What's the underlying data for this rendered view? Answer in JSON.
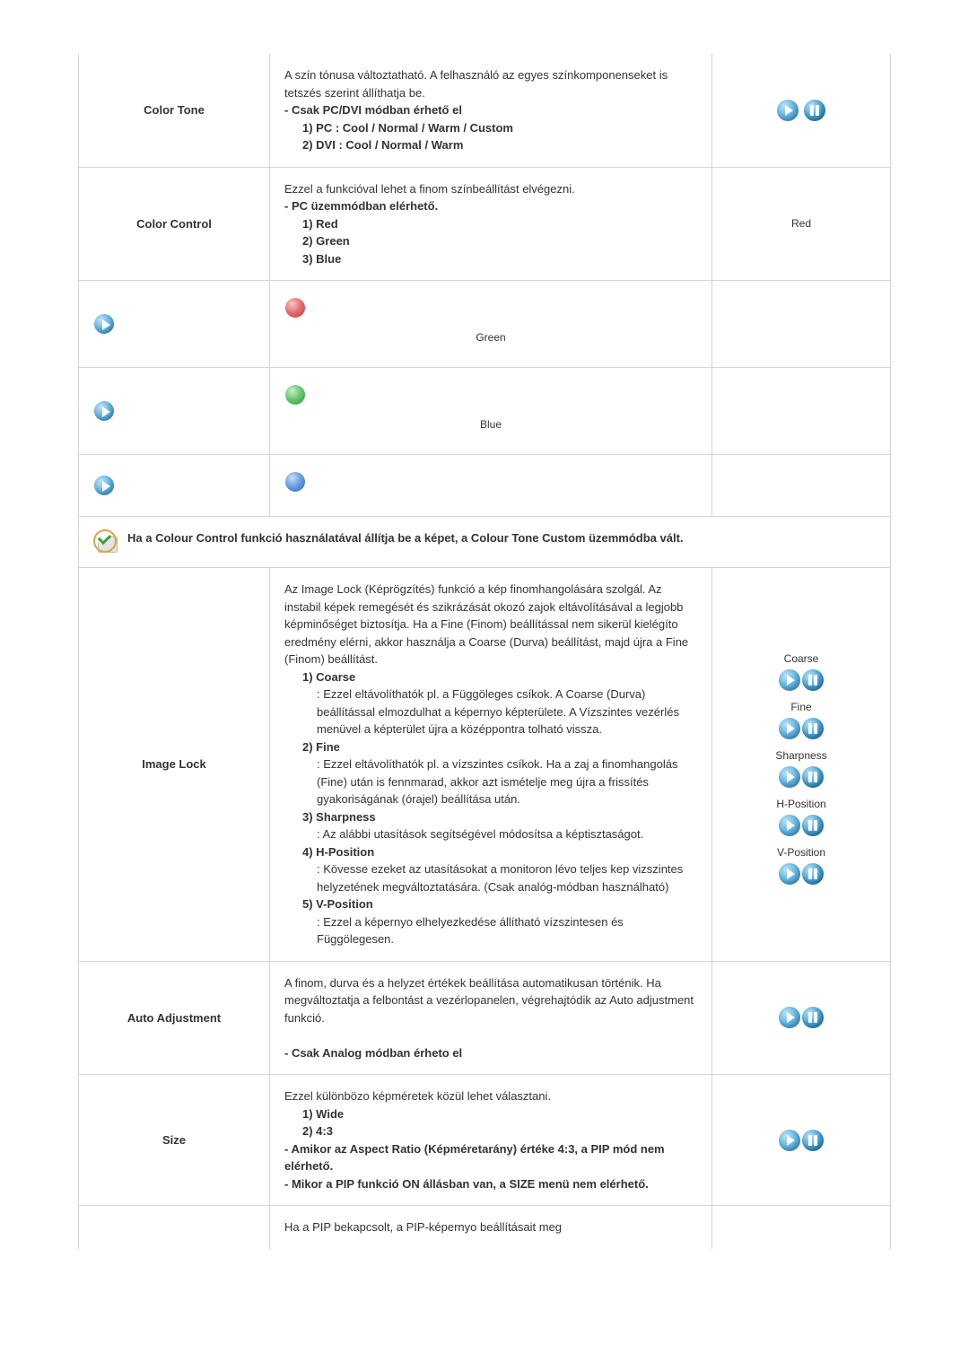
{
  "rows": {
    "color_tone": {
      "label": "Color Tone",
      "desc_intro": "A szín tónusa változtatható. A felhasználó az egyes színkomponenseket is tetszés szerint állíthatja be.",
      "desc_bold": "- Csak PC/DVI módban érhető el",
      "opt1": "1) PC : Cool / Normal / Warm / Custom",
      "opt2": "2) DVI : Cool / Normal / Warm"
    },
    "color_control": {
      "label": "Color Control",
      "desc_intro": "Ezzel a funkcióval lehet a finom színbeállítást elvégezni.",
      "desc_bold": "- PC üzemmódban elérhető.",
      "opt1": "1) Red",
      "opt2": "2) Green",
      "opt3": "3) Blue",
      "right_label": "Red",
      "slider_labels": {
        "green": "Green",
        "blue": "Blue"
      }
    },
    "note": {
      "text": "Ha a Colour Control funkció használatával állítja be a képet, a Colour Tone Custom üzemmódba vált."
    },
    "image_lock": {
      "label": "Image Lock",
      "intro": "Az Image Lock (Képrögzítés) funkció a kép finomhangolására szolgál. Az instabil képek remegését és szikrázását okozó zajok eltávolításával a legjobb képminőséget biztosítja. Ha a Fine (Finom) beállítással nem sikerül kielégíto eredmény elérni, akkor használja a Coarse (Durva) beállítást, majd újra a Fine (Finom) beállítást.",
      "h1": "1) Coarse",
      "d1": ": Ezzel eltávolíthatók pl. a Függöleges csíkok. A Coarse (Durva) beállítással elmozdulhat a képernyo képterülete. A Vízszintes vezérlés menüvel a képterület újra a középpontra tolható vissza.",
      "h2": "2) Fine",
      "d2": ": Ezzel eltávolíthatók pl. a vízszintes csíkok. Ha a zaj a finomhangolás (Fine) után is fennmarad, akkor azt ismételje meg újra a frissítés gyakoriságának (órajel) beállítása után.",
      "h3": "3) Sharpness",
      "d3": ": Az alábbi utasítások segítségével módosítsa a képtisztaságot.",
      "h4": "4) H-Position",
      "d4": ": Kövesse ezeket az utasításokat a monitoron lévo teljes kep vizszintes helyzetének megváltoztatására. (Csak analóg-módban használható)",
      "h5": "5) V-Position",
      "d5": ": Ezzel a képernyo elhelyezkedése állítható vízszintesen és Függölegesen.",
      "right": {
        "coarse": "Coarse",
        "fine": "Fine",
        "sharpness": "Sharpness",
        "hpos": "H-Position",
        "vpos": "V-Position"
      }
    },
    "auto_adjustment": {
      "label": "Auto Adjustment",
      "intro": "A finom, durva és a helyzet értékek beállítása automatikusan történik. Ha megváltoztatja a felbontást a vezérlopanelen, végrehajtódik az Auto adjustment funkció.",
      "bold": "- Csak Analog módban érheto el"
    },
    "size": {
      "label": "Size",
      "intro": "Ezzel különbözo képméretek közül lehet választani.",
      "opt1": "1) Wide",
      "opt2": "2) 4:3",
      "bold1": "- Amikor az Aspect Ratio (Képméretarány) értéke 4:3, a PIP mód nem elérhető.",
      "bold2": "- Mikor a PIP funkció ON állásban van, a SIZE menü nem elérhető."
    },
    "trailing": {
      "text": "Ha a PIP bekapcsolt, a PIP-képernyo beállításait meg"
    }
  },
  "colors": {
    "border": "#d5d5d5",
    "text": "#333333",
    "icon_blue_light": "#67b7e1",
    "icon_blue_dark": "#1d77b4"
  }
}
